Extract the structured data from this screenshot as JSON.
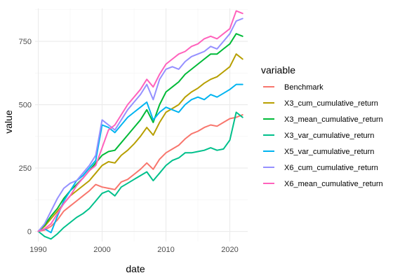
{
  "chart_data": {
    "type": "line",
    "xlabel": "date",
    "ylabel": "value",
    "xlim": [
      1989.5,
      2022.8
    ],
    "ylim": [
      -40,
      880
    ],
    "x_ticks": [
      1990,
      2000,
      2010,
      2020
    ],
    "y_ticks": [
      0,
      250,
      500,
      750
    ],
    "x_tick_labels": [
      "1990",
      "2000",
      "2010",
      "2020"
    ],
    "y_tick_labels": [
      "0",
      "250",
      "500",
      "750"
    ],
    "grid": true,
    "legend": {
      "title": "variable",
      "position": "right"
    },
    "series": [
      {
        "name": "Benchmark",
        "color": "#F8766D",
        "points": [
          [
            1990,
            0
          ],
          [
            1991,
            5
          ],
          [
            1992,
            20
          ],
          [
            1993,
            45
          ],
          [
            1994,
            80
          ],
          [
            1995,
            100
          ],
          [
            1996,
            120
          ],
          [
            1997,
            140
          ],
          [
            1998,
            160
          ],
          [
            1999,
            185
          ],
          [
            2000,
            175
          ],
          [
            2001,
            170
          ],
          [
            2002,
            165
          ],
          [
            2003,
            195
          ],
          [
            2004,
            205
          ],
          [
            2005,
            225
          ],
          [
            2006,
            245
          ],
          [
            2007,
            270
          ],
          [
            2008,
            245
          ],
          [
            2009,
            285
          ],
          [
            2010,
            310
          ],
          [
            2011,
            325
          ],
          [
            2012,
            340
          ],
          [
            2013,
            365
          ],
          [
            2014,
            385
          ],
          [
            2015,
            395
          ],
          [
            2016,
            410
          ],
          [
            2017,
            420
          ],
          [
            2018,
            415
          ],
          [
            2019,
            430
          ],
          [
            2020,
            445
          ],
          [
            2021,
            450
          ],
          [
            2022,
            460
          ]
        ]
      },
      {
        "name": "X3_cum_cumulative_return",
        "color": "#B79F00",
        "points": [
          [
            1990,
            0
          ],
          [
            1991,
            20
          ],
          [
            1992,
            50
          ],
          [
            1993,
            80
          ],
          [
            1994,
            110
          ],
          [
            1995,
            140
          ],
          [
            1996,
            160
          ],
          [
            1997,
            180
          ],
          [
            1998,
            200
          ],
          [
            1999,
            230
          ],
          [
            2000,
            260
          ],
          [
            2001,
            275
          ],
          [
            2002,
            270
          ],
          [
            2003,
            300
          ],
          [
            2004,
            320
          ],
          [
            2005,
            345
          ],
          [
            2006,
            375
          ],
          [
            2007,
            410
          ],
          [
            2008,
            380
          ],
          [
            2009,
            430
          ],
          [
            2010,
            470
          ],
          [
            2011,
            485
          ],
          [
            2012,
            500
          ],
          [
            2013,
            530
          ],
          [
            2014,
            550
          ],
          [
            2015,
            565
          ],
          [
            2016,
            585
          ],
          [
            2017,
            600
          ],
          [
            2018,
            610
          ],
          [
            2019,
            630
          ],
          [
            2020,
            650
          ],
          [
            2021,
            700
          ],
          [
            2022,
            680
          ]
        ]
      },
      {
        "name": "X3_mean_cumulative_return",
        "color": "#00BA38",
        "points": [
          [
            1990,
            0
          ],
          [
            1991,
            25
          ],
          [
            1992,
            60
          ],
          [
            1993,
            90
          ],
          [
            1994,
            130
          ],
          [
            1995,
            160
          ],
          [
            1996,
            185
          ],
          [
            1997,
            210
          ],
          [
            1998,
            240
          ],
          [
            1999,
            270
          ],
          [
            2000,
            300
          ],
          [
            2001,
            315
          ],
          [
            2002,
            320
          ],
          [
            2003,
            350
          ],
          [
            2004,
            380
          ],
          [
            2005,
            410
          ],
          [
            2006,
            440
          ],
          [
            2007,
            480
          ],
          [
            2008,
            430
          ],
          [
            2009,
            500
          ],
          [
            2010,
            550
          ],
          [
            2011,
            570
          ],
          [
            2012,
            590
          ],
          [
            2013,
            620
          ],
          [
            2014,
            640
          ],
          [
            2015,
            660
          ],
          [
            2016,
            680
          ],
          [
            2017,
            700
          ],
          [
            2018,
            700
          ],
          [
            2019,
            720
          ],
          [
            2020,
            740
          ],
          [
            2021,
            780
          ],
          [
            2022,
            770
          ]
        ]
      },
      {
        "name": "X3_var_cumulative_return",
        "color": "#00C08B",
        "points": [
          [
            1990,
            0
          ],
          [
            1991,
            -20
          ],
          [
            1992,
            -30
          ],
          [
            1993,
            -10
          ],
          [
            1994,
            15
          ],
          [
            1995,
            35
          ],
          [
            1996,
            55
          ],
          [
            1997,
            70
          ],
          [
            1998,
            90
          ],
          [
            1999,
            120
          ],
          [
            2000,
            150
          ],
          [
            2001,
            160
          ],
          [
            2002,
            140
          ],
          [
            2003,
            175
          ],
          [
            2004,
            190
          ],
          [
            2005,
            205
          ],
          [
            2006,
            220
          ],
          [
            2007,
            235
          ],
          [
            2008,
            200
          ],
          [
            2009,
            230
          ],
          [
            2010,
            260
          ],
          [
            2011,
            280
          ],
          [
            2012,
            290
          ],
          [
            2013,
            310
          ],
          [
            2014,
            310
          ],
          [
            2015,
            315
          ],
          [
            2016,
            320
          ],
          [
            2017,
            330
          ],
          [
            2018,
            320
          ],
          [
            2019,
            325
          ],
          [
            2020,
            360
          ],
          [
            2021,
            470
          ],
          [
            2022,
            450
          ]
        ]
      },
      {
        "name": "X5_var_cumulative_return",
        "color": "#00B4F0",
        "points": [
          [
            1990,
            0
          ],
          [
            1991,
            10
          ],
          [
            1992,
            -5
          ],
          [
            1993,
            60
          ],
          [
            1994,
            120
          ],
          [
            1995,
            160
          ],
          [
            1996,
            200
          ],
          [
            1997,
            220
          ],
          [
            1998,
            250
          ],
          [
            1999,
            280
          ],
          [
            2000,
            420
          ],
          [
            2001,
            410
          ],
          [
            2002,
            390
          ],
          [
            2003,
            420
          ],
          [
            2004,
            450
          ],
          [
            2005,
            470
          ],
          [
            2006,
            490
          ],
          [
            2007,
            510
          ],
          [
            2008,
            440
          ],
          [
            2009,
            470
          ],
          [
            2010,
            490
          ],
          [
            2011,
            480
          ],
          [
            2012,
            470
          ],
          [
            2013,
            500
          ],
          [
            2014,
            520
          ],
          [
            2015,
            530
          ],
          [
            2016,
            520
          ],
          [
            2017,
            540
          ],
          [
            2018,
            530
          ],
          [
            2019,
            545
          ],
          [
            2020,
            560
          ],
          [
            2021,
            580
          ],
          [
            2022,
            580
          ]
        ]
      },
      {
        "name": "X6_cum_cumulative_return",
        "color": "#9590FF",
        "points": [
          [
            1990,
            0
          ],
          [
            1991,
            30
          ],
          [
            1992,
            80
          ],
          [
            1993,
            130
          ],
          [
            1994,
            170
          ],
          [
            1995,
            190
          ],
          [
            1996,
            200
          ],
          [
            1997,
            230
          ],
          [
            1998,
            260
          ],
          [
            1999,
            300
          ],
          [
            2000,
            440
          ],
          [
            2001,
            420
          ],
          [
            2002,
            400
          ],
          [
            2003,
            440
          ],
          [
            2004,
            480
          ],
          [
            2005,
            510
          ],
          [
            2006,
            540
          ],
          [
            2007,
            580
          ],
          [
            2008,
            520
          ],
          [
            2009,
            600
          ],
          [
            2010,
            640
          ],
          [
            2011,
            650
          ],
          [
            2012,
            640
          ],
          [
            2013,
            670
          ],
          [
            2014,
            690
          ],
          [
            2015,
            700
          ],
          [
            2016,
            710
          ],
          [
            2017,
            730
          ],
          [
            2018,
            720
          ],
          [
            2019,
            750
          ],
          [
            2020,
            780
          ],
          [
            2021,
            830
          ],
          [
            2022,
            840
          ]
        ]
      },
      {
        "name": "X6_mean_cumulative_return",
        "color": "#FF62BC",
        "points": [
          [
            1990,
            0
          ],
          [
            1991,
            10
          ],
          [
            1992,
            30
          ],
          [
            1993,
            70
          ],
          [
            1994,
            110
          ],
          [
            1995,
            140
          ],
          [
            1996,
            180
          ],
          [
            1997,
            210
          ],
          [
            1998,
            240
          ],
          [
            1999,
            260
          ],
          [
            2000,
            330
          ],
          [
            2001,
            400
          ],
          [
            2002,
            420
          ],
          [
            2003,
            460
          ],
          [
            2004,
            500
          ],
          [
            2005,
            530
          ],
          [
            2006,
            560
          ],
          [
            2007,
            600
          ],
          [
            2008,
            570
          ],
          [
            2009,
            620
          ],
          [
            2010,
            660
          ],
          [
            2011,
            680
          ],
          [
            2012,
            700
          ],
          [
            2013,
            710
          ],
          [
            2014,
            730
          ],
          [
            2015,
            740
          ],
          [
            2016,
            760
          ],
          [
            2017,
            770
          ],
          [
            2018,
            760
          ],
          [
            2019,
            780
          ],
          [
            2020,
            800
          ],
          [
            2021,
            870
          ],
          [
            2022,
            860
          ]
        ]
      }
    ]
  }
}
